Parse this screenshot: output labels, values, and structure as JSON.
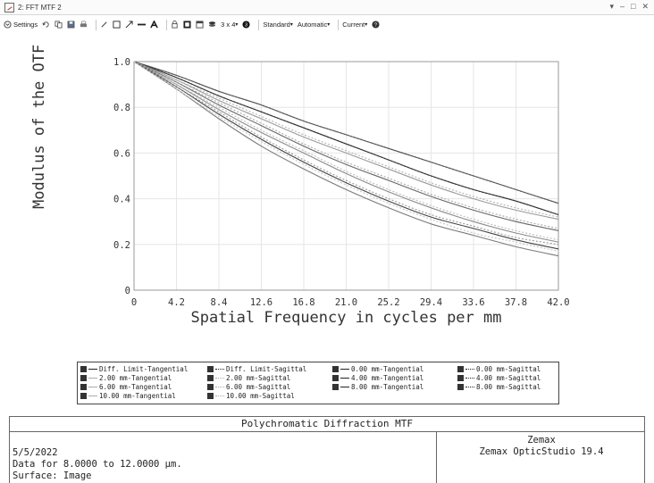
{
  "window": {
    "title": "2: FFT MTF 2",
    "controls": [
      "▾",
      "–",
      "□",
      "✕"
    ]
  },
  "toolbar": {
    "settings_label": "Settings",
    "grid_label": "3 x 4",
    "standard_label": "Standard",
    "automatic_label": "Automatic",
    "current_label": "Current"
  },
  "chart_data": {
    "type": "line",
    "ylabel": "Modulus of the OTF",
    "xlabel": "Spatial Frequency in cycles per mm",
    "xlim": [
      0,
      42
    ],
    "ylim": [
      0,
      1
    ],
    "xticks": [
      "0",
      "4.2",
      "8.4",
      "12.6",
      "16.8",
      "21.0",
      "25.2",
      "29.4",
      "33.6",
      "37.8",
      "42.0"
    ],
    "yticks": [
      "0",
      "0.2",
      "0.4",
      "0.6",
      "0.8",
      "1.0"
    ],
    "grid": true,
    "x": [
      0,
      4.2,
      8.4,
      12.6,
      16.8,
      21.0,
      25.2,
      29.4,
      33.6,
      37.8,
      42.0
    ],
    "series": [
      {
        "name": "Diff. Limit-Tangential",
        "values": [
          1.0,
          0.94,
          0.87,
          0.81,
          0.74,
          0.68,
          0.62,
          0.56,
          0.5,
          0.44,
          0.38
        ],
        "color": "#555555",
        "dash": "solid"
      },
      {
        "name": "Diff. Limit-Sagittal",
        "values": [
          1.0,
          0.94,
          0.87,
          0.81,
          0.74,
          0.68,
          0.62,
          0.56,
          0.5,
          0.44,
          0.38
        ],
        "color": "#555555",
        "dash": "dotted"
      },
      {
        "name": "0.00 mm-Tangential",
        "values": [
          1.0,
          0.93,
          0.85,
          0.78,
          0.71,
          0.64,
          0.57,
          0.5,
          0.44,
          0.39,
          0.33
        ],
        "color": "#333333",
        "dash": "solid"
      },
      {
        "name": "0.00 mm-Sagittal",
        "values": [
          1.0,
          0.93,
          0.85,
          0.78,
          0.71,
          0.64,
          0.57,
          0.5,
          0.44,
          0.39,
          0.33
        ],
        "color": "#333333",
        "dash": "dotted"
      },
      {
        "name": "2.00 mm-Tangential",
        "values": [
          1.0,
          0.92,
          0.83,
          0.75,
          0.67,
          0.6,
          0.53,
          0.46,
          0.4,
          0.35,
          0.31
        ],
        "color": "#9a9a9a",
        "dash": "solid"
      },
      {
        "name": "2.00 mm-Sagittal",
        "values": [
          1.0,
          0.92,
          0.84,
          0.76,
          0.68,
          0.61,
          0.54,
          0.47,
          0.41,
          0.36,
          0.32
        ],
        "color": "#b4b4b4",
        "dash": "dotted"
      },
      {
        "name": "4.00 mm-Tangential",
        "values": [
          1.0,
          0.91,
          0.81,
          0.72,
          0.63,
          0.55,
          0.48,
          0.41,
          0.35,
          0.3,
          0.26
        ],
        "color": "#666666",
        "dash": "solid"
      },
      {
        "name": "4.00 mm-Sagittal",
        "values": [
          1.0,
          0.91,
          0.82,
          0.73,
          0.64,
          0.56,
          0.49,
          0.42,
          0.36,
          0.31,
          0.27
        ],
        "color": "#a8a8a8",
        "dash": "dotted"
      },
      {
        "name": "6.00 mm-Tangential",
        "values": [
          1.0,
          0.9,
          0.79,
          0.69,
          0.6,
          0.51,
          0.43,
          0.36,
          0.3,
          0.25,
          0.21
        ],
        "color": "#8a8a8a",
        "dash": "solid"
      },
      {
        "name": "6.00 mm-Sagittal",
        "values": [
          1.0,
          0.9,
          0.8,
          0.7,
          0.61,
          0.52,
          0.44,
          0.37,
          0.31,
          0.26,
          0.22
        ],
        "color": "#bcbcbc",
        "dash": "dotted"
      },
      {
        "name": "8.00 mm-Tangential",
        "values": [
          1.0,
          0.89,
          0.77,
          0.66,
          0.56,
          0.47,
          0.39,
          0.32,
          0.27,
          0.22,
          0.18
        ],
        "color": "#444444",
        "dash": "solid"
      },
      {
        "name": "8.00 mm-Sagittal",
        "values": [
          1.0,
          0.89,
          0.78,
          0.67,
          0.57,
          0.48,
          0.4,
          0.33,
          0.28,
          0.23,
          0.2
        ],
        "color": "#999999",
        "dash": "dotted"
      },
      {
        "name": "10.00 mm-Tangential",
        "values": [
          1.0,
          0.88,
          0.75,
          0.63,
          0.53,
          0.44,
          0.36,
          0.29,
          0.24,
          0.19,
          0.15
        ],
        "color": "#7a7a7a",
        "dash": "solid"
      },
      {
        "name": "10.00 mm-Sagittal",
        "values": [
          1.0,
          0.88,
          0.76,
          0.65,
          0.55,
          0.46,
          0.38,
          0.31,
          0.25,
          0.21,
          0.17
        ],
        "color": "#c4c4c4",
        "dash": "dotted"
      }
    ]
  },
  "legend": {
    "rows": [
      [
        {
          "label": "Diff. Limit-Tangential",
          "style": "solid"
        },
        {
          "label": "Diff. Limit-Sagittal",
          "style": "dotted"
        },
        {
          "label": "0.00 mm-Tangential",
          "style": "solid"
        },
        {
          "label": "0.00 mm-Sagittal",
          "style": "dotted"
        }
      ],
      [
        {
          "label": "2.00 mm-Tangential",
          "style": "light"
        },
        {
          "label": "2.00 mm-Sagittal",
          "style": "lightdot"
        },
        {
          "label": "4.00 mm-Tangential",
          "style": "solid"
        },
        {
          "label": "4.00 mm-Sagittal",
          "style": "dotted"
        }
      ],
      [
        {
          "label": "6.00 mm-Tangential",
          "style": "light"
        },
        {
          "label": "6.00 mm-Sagittal",
          "style": "lightdot"
        },
        {
          "label": "8.00 mm-Tangential",
          "style": "solid"
        },
        {
          "label": "8.00 mm-Sagittal",
          "style": "dotted"
        }
      ],
      [
        {
          "label": "10.00 mm-Tangential",
          "style": "light"
        },
        {
          "label": "10.00 mm-Sagittal",
          "style": "lightdot"
        }
      ]
    ]
  },
  "info": {
    "header": "Polychromatic Diffraction MTF",
    "date": "5/5/2022",
    "data_for": "Data for 8.0000  to 12.0000 µm.",
    "surface": "Surface: Image",
    "company": "Zemax",
    "product": "Zemax OpticStudio 19.4"
  }
}
